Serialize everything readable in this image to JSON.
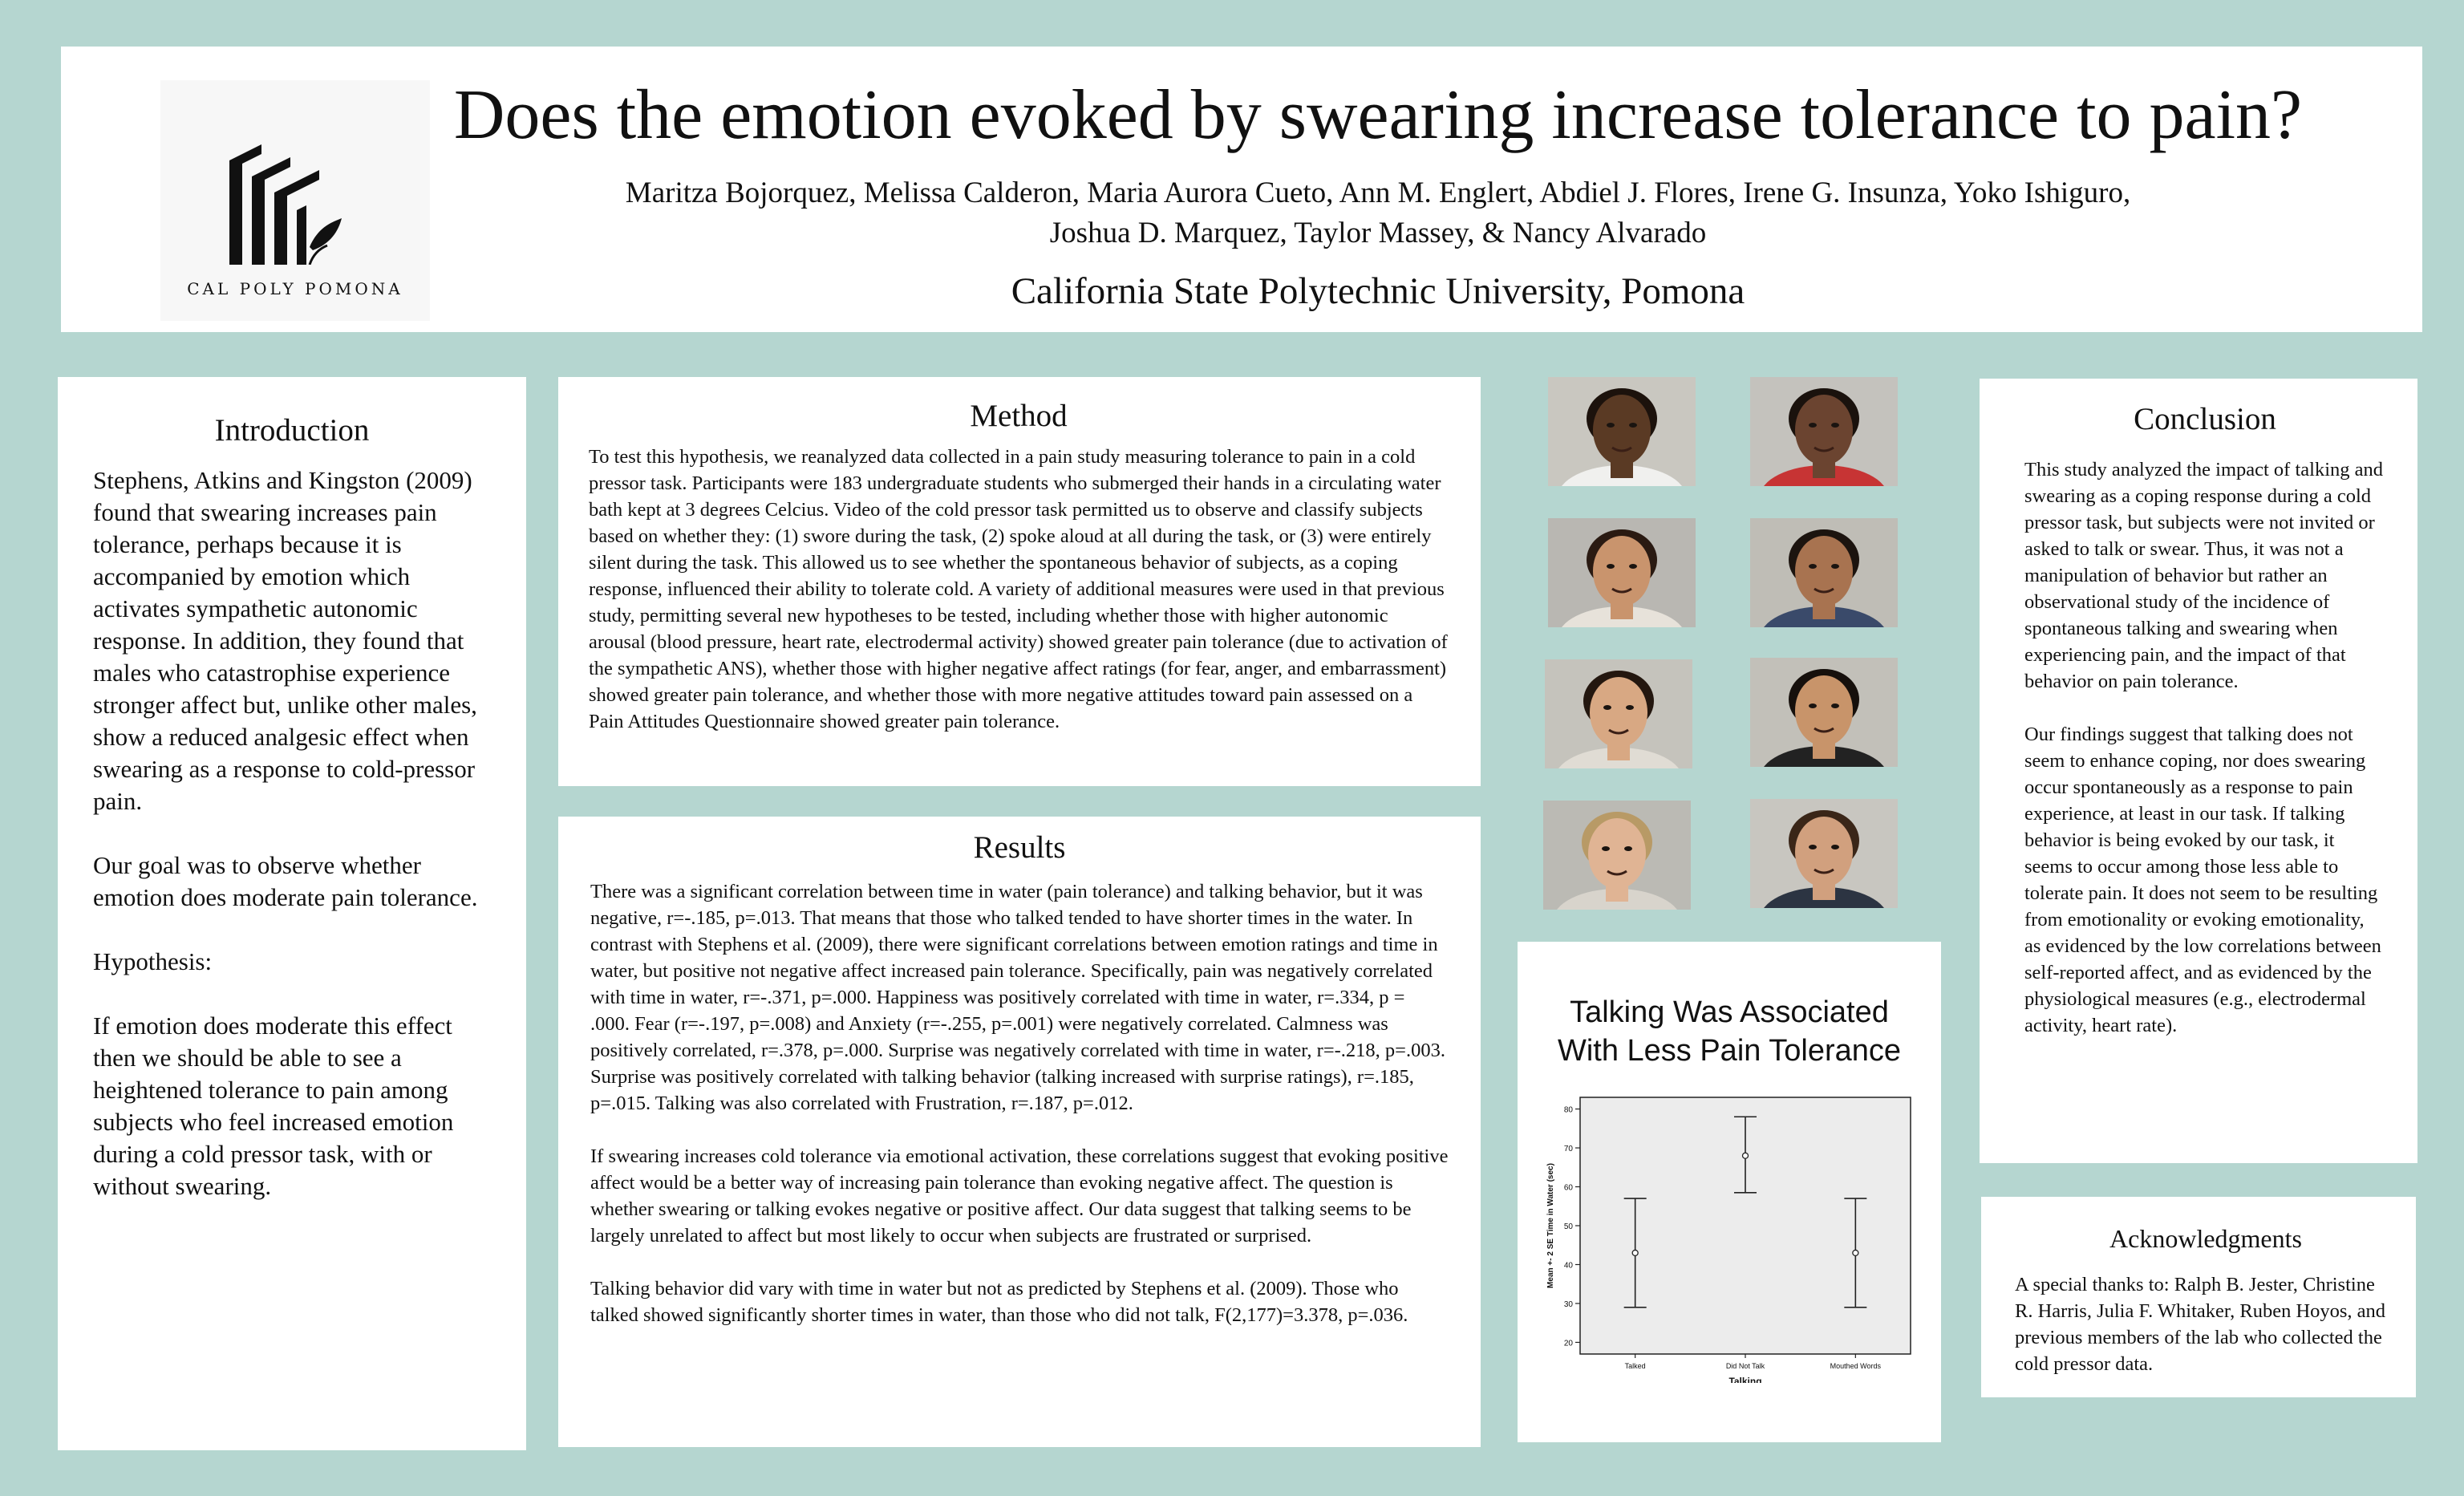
{
  "header": {
    "logo_text": "CAL POLY POMONA",
    "title": "Does the emotion evoked by swearing increase tolerance to pain?",
    "authors_line1": "Maritza Bojorquez, Melissa Calderon, Maria Aurora Cueto, Ann M. Englert, Abdiel J. Flores, Irene G. Insunza, Yoko Ishiguro,",
    "authors_line2": "Joshua D. Marquez, Taylor Massey, & Nancy Alvarado",
    "affiliation": "California State Polytechnic University, Pomona"
  },
  "introduction": {
    "title": "Introduction",
    "paragraphs": [
      "Stephens, Atkins and Kingston (2009) found that swearing increases pain tolerance, perhaps because it is accompanied by emotion which activates sympathetic autonomic response. In addition, they found that males who catastrophise experience stronger affect but, unlike other males, show a reduced analgesic effect when swearing as a response to cold-pressor pain.",
      "Our goal was to observe whether emotion does moderate pain tolerance.",
      "Hypothesis:",
      "If emotion does moderate this effect then we should be able to see a heightened tolerance to pain among subjects who feel increased emotion during a cold pressor task, with or without swearing."
    ]
  },
  "method": {
    "title": "Method",
    "text": "To test this hypothesis, we reanalyzed data collected in a pain study measuring tolerance to pain in a cold pressor task. Participants were 183 undergraduate students who submerged their hands in a circulating water bath kept at 3 degrees Celcius. Video of the cold pressor task permitted us to observe and classify subjects based on whether they: (1) swore during the task, (2) spoke aloud at all during the task, or (3) were entirely silent during the task. This allowed us to see whether the spontaneous behavior of subjects, as a coping response, influenced their ability to tolerate cold. A variety of additional measures were used in that previous study, permitting several new hypotheses to be tested, including whether those with higher autonomic arousal (blood pressure, heart rate, electrodermal activity) showed greater pain tolerance (due to activation of the sympathetic ANS), whether those with higher negative affect ratings (for fear, anger, and embarrassment) showed greater pain tolerance, and whether those with more negative attitudes toward pain assessed on a Pain Attitudes Questionnaire showed greater pain tolerance."
  },
  "results": {
    "title": "Results",
    "paragraphs": [
      "There was a significant correlation between time in water (pain tolerance) and talking behavior, but it was negative, r=-.185, p=.013. That means that those who talked tended to have shorter times in the water. In contrast with Stephens et al. (2009), there were significant correlations between emotion ratings and time in water, but positive not negative affect increased pain tolerance. Specifically, pain was negatively correlated with time in water, r=-.371, p=.000. Happiness was positively correlated with time in water, r=.334, p = .000. Fear (r=-.197, p=.008) and Anxiety (r=-.255, p=.001) were negatively correlated. Calmness was positively correlated, r=.378, p=.000. Surprise was negatively correlated with time in water, r=-.218, p=.003. Surprise was positively correlated with talking behavior (talking increased with surprise ratings), r=.185, p=.015. Talking was also correlated with Frustration, r=.187, p=.012.",
      "If swearing increases cold tolerance via emotional activation, these correlations suggest that evoking positive affect would be a better way of increasing pain tolerance than evoking negative affect. The question is whether swearing or talking evokes negative or positive affect. Our data suggest that talking seems to be largely unrelated to affect but most likely to occur when subjects are frustrated or surprised.",
      "Talking behavior did vary with time in water but not as predicted by Stephens et al. (2009). Those who talked showed significantly shorter times in water, than those who did not talk, F(2,177)=3.378, p=.036."
    ]
  },
  "photos": {
    "icon": "face-photo",
    "items": [
      {
        "bg": "#c9c7c0",
        "skin": "#5a3a24",
        "hair": "#1c120c",
        "shirt": "#f0f0ee"
      },
      {
        "bg": "#c4c2bd",
        "skin": "#6b4430",
        "hair": "#1a120d",
        "shirt": "#c73434"
      },
      {
        "bg": "#b9b7b2",
        "skin": "#c9946d",
        "hair": "#2a1a12",
        "shirt": "#e7e2da"
      },
      {
        "bg": "#bfbdb6",
        "skin": "#a87350",
        "hair": "#1c140f",
        "shirt": "#3a4a6a"
      },
      {
        "bg": "#c5c3bc",
        "skin": "#d8a883",
        "hair": "#24170f",
        "shirt": "#e0dcd4"
      },
      {
        "bg": "#c2c0b9",
        "skin": "#c8946a",
        "hair": "#16100c",
        "shirt": "#222222"
      },
      {
        "bg": "#bbbab4",
        "skin": "#e0b494",
        "hair": "#b89a66",
        "shirt": "#d8d4cc"
      },
      {
        "bg": "#c8c6c0",
        "skin": "#d1a07e",
        "hair": "#3a2618",
        "shirt": "#2c3442"
      }
    ]
  },
  "chart": {
    "title_line1": "Talking Was Associated",
    "title_line2": "With Less Pain Tolerance"
  },
  "chart_data": {
    "type": "scatter",
    "title": "",
    "xlabel": "Talking",
    "ylabel": "Mean +- 2 SE Time in Water (sec)",
    "categories": [
      "Talked",
      "Did Not Talk",
      "Mouthed Words"
    ],
    "means": [
      43,
      68,
      43
    ],
    "upper": [
      57,
      78,
      57
    ],
    "lower": [
      29,
      58.5,
      29
    ],
    "yticks": [
      20,
      30,
      40,
      50,
      60,
      70,
      80
    ],
    "ylim": [
      17,
      83
    ],
    "grid": false,
    "error_bars": "±2 SE"
  },
  "conclusion": {
    "title": "Conclusion",
    "paragraphs": [
      "This study analyzed the impact of talking and swearing as a coping response during a cold pressor task, but subjects were not invited or asked to talk or swear. Thus, it was not a manipulation of behavior but rather an observational study of the incidence of spontaneous talking and swearing when experiencing pain, and the impact of that behavior on pain tolerance.",
      "Our findings suggest that talking does not seem to enhance coping, nor does swearing occur spontaneously as a response to pain experience, at least in our task. If talking behavior is being evoked by our task, it seems to occur among those less able to tolerate pain. It does not seem to be resulting from emotionality or evoking emotionality, as evidenced by the low correlations between self-reported affect, and as evidenced by the physiological measures (e.g., electrodermal activity, heart rate)."
    ]
  },
  "acknowledgments": {
    "title": "Acknowledgments",
    "text": "A special thanks to: Ralph B. Jester, Christine R. Harris, Julia F. Whitaker, Ruben Hoyos, and previous members of the lab who collected the cold pressor data."
  },
  "colors": {
    "background": "#b5d6d0",
    "panel": "#ffffff",
    "chart_plot": "#ececec"
  }
}
